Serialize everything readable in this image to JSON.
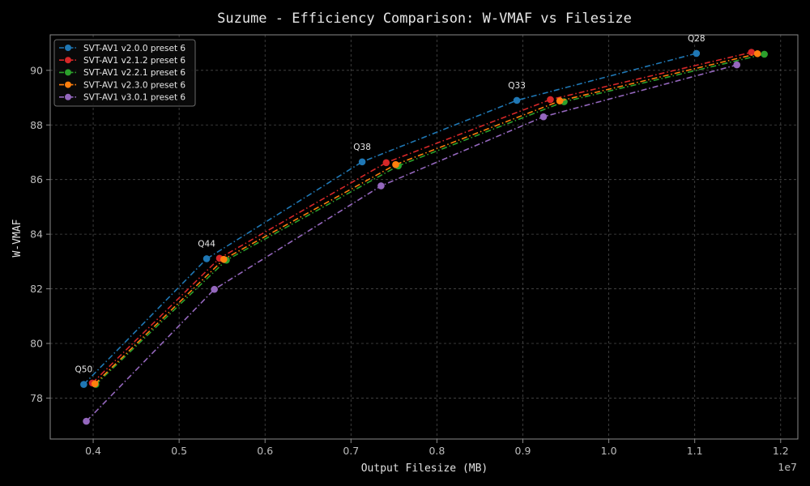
{
  "chart_data": {
    "type": "line",
    "title": "Suzume - Efficiency Comparison: W-VMAF vs Filesize",
    "xlabel": "Output Filesize (MB)",
    "ylabel": "W-VMAF",
    "x_offset_label": "1e7",
    "xlim": [
      3500000,
      12200000
    ],
    "ylim": [
      76.5,
      91.3
    ],
    "xticks": [
      4000000,
      5000000,
      6000000,
      7000000,
      8000000,
      9000000,
      10000000,
      11000000,
      12000000
    ],
    "xtick_labels": [
      "0.4",
      "0.5",
      "0.6",
      "0.7",
      "0.8",
      "0.9",
      "1.0",
      "1.1",
      "1.2"
    ],
    "yticks": [
      78,
      80,
      82,
      84,
      86,
      88,
      90
    ],
    "ytick_labels": [
      "78",
      "80",
      "82",
      "84",
      "86",
      "88",
      "90"
    ],
    "grid": true,
    "legend_position": "top-left",
    "series": [
      {
        "name": "SVT-AV1 v2.0.0 preset 6",
        "color": "#1f77b4",
        "x": [
          3890000,
          5320000,
          7130000,
          8930000,
          11020000
        ],
        "y": [
          78.5,
          83.1,
          86.65,
          88.9,
          90.62
        ]
      },
      {
        "name": "SVT-AV1 v2.1.2 preset 6",
        "color": "#d62728",
        "x": [
          3990000,
          5470000,
          7410000,
          9320000,
          11660000
        ],
        "y": [
          78.55,
          83.12,
          86.62,
          88.93,
          90.66
        ]
      },
      {
        "name": "SVT-AV1 v2.2.1 preset 6",
        "color": "#2ca02c",
        "x": [
          4030000,
          5550000,
          7550000,
          9480000,
          11810000
        ],
        "y": [
          78.5,
          83.05,
          86.5,
          88.85,
          90.59
        ]
      },
      {
        "name": "SVT-AV1 v2.3.0 preset 6",
        "color": "#ff7f0e",
        "x": [
          4020000,
          5520000,
          7520000,
          9430000,
          11730000
        ],
        "y": [
          78.52,
          83.08,
          86.55,
          88.88,
          90.61
        ]
      },
      {
        "name": "SVT-AV1 v3.0.1 preset 6",
        "color": "#9467bd",
        "x": [
          3920000,
          5410000,
          7350000,
          9240000,
          11490000
        ],
        "y": [
          77.15,
          81.98,
          85.77,
          88.3,
          90.2
        ]
      }
    ],
    "annotations": [
      {
        "text": "Q50",
        "x": 3890000,
        "y": 78.5
      },
      {
        "text": "Q44",
        "x": 5320000,
        "y": 83.1
      },
      {
        "text": "Q38",
        "x": 7130000,
        "y": 86.65
      },
      {
        "text": "Q33",
        "x": 8930000,
        "y": 88.9
      },
      {
        "text": "Q28",
        "x": 11020000,
        "y": 90.62
      }
    ]
  }
}
